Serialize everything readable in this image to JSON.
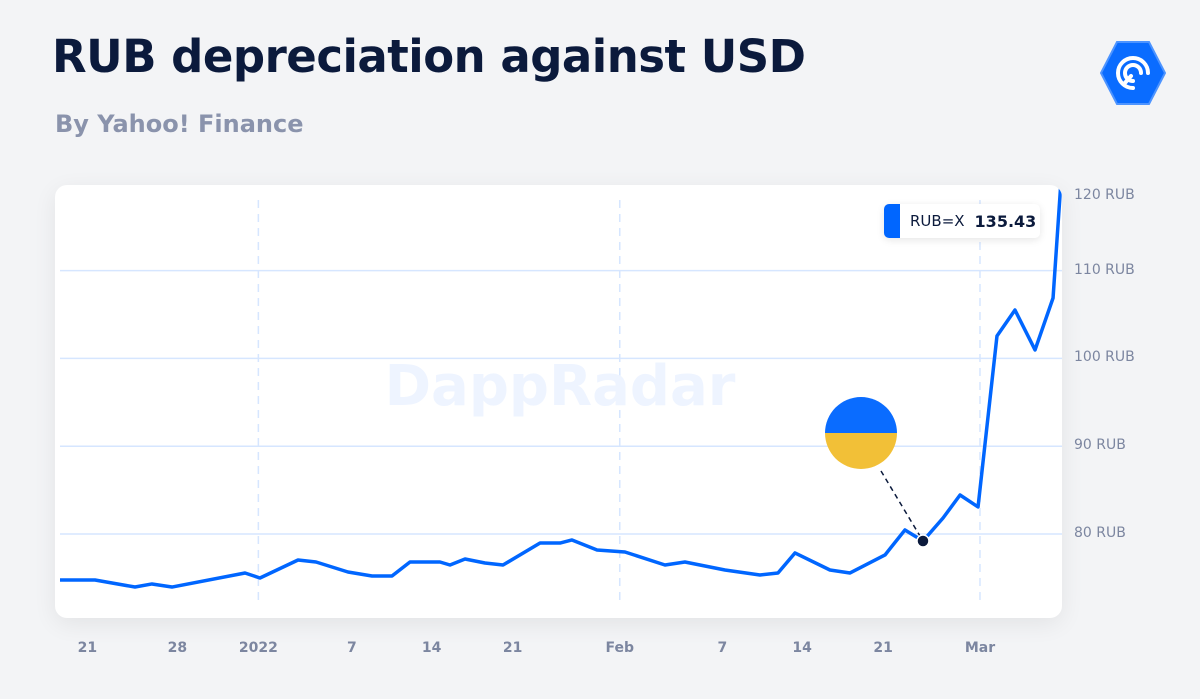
{
  "header": {
    "title": "RUB depreciation against USD",
    "subtitle": "By Yahoo! Finance"
  },
  "watermark": "DappRadar",
  "colors": {
    "line": "#0066ff",
    "grid": "#d6e6ff",
    "flag_blue": "#0a6cff",
    "flag_yellow": "#f2c037"
  },
  "chart_data": {
    "type": "line",
    "title": "RUB depreciation against USD",
    "legend": {
      "series": "RUB=X",
      "value": "135.43",
      "placement": "top-right"
    },
    "ylim": [
      70,
      120
    ],
    "yticks": [
      {
        "value": 80,
        "label": "80 RUB"
      },
      {
        "value": 90,
        "label": "90 RUB"
      },
      {
        "value": 100,
        "label": "100 RUB"
      },
      {
        "value": 110,
        "label": "110 RUB"
      },
      {
        "value": 120,
        "label": "120 RUB"
      }
    ],
    "xticks": [
      {
        "day": 2.4,
        "label": "21",
        "bold_grid": false
      },
      {
        "day": 10.3,
        "label": "28",
        "bold_grid": false
      },
      {
        "day": 17.4,
        "label": "2022",
        "grid": true
      },
      {
        "day": 25.6,
        "label": "7"
      },
      {
        "day": 32.6,
        "label": "14"
      },
      {
        "day": 39.7,
        "label": "21"
      },
      {
        "day": 49.1,
        "label": "Feb",
        "grid": true
      },
      {
        "day": 58.1,
        "label": "7"
      },
      {
        "day": 65.1,
        "label": "14"
      },
      {
        "day": 72.2,
        "label": "21"
      },
      {
        "day": 80.7,
        "label": "Mar",
        "grid": true
      }
    ],
    "series": [
      {
        "name": "RUB=X",
        "x": [
          0,
          3.07,
          6.58,
          8.07,
          9.82,
          16.23,
          17.54,
          20.88,
          22.46,
          25.26,
          27.37,
          29.12,
          30.7,
          33.33,
          34.21,
          35.53,
          37.28,
          38.86,
          42.11,
          43.86,
          44.91,
          47.11,
          49.56,
          53.07,
          54.82,
          58.33,
          61.4,
          62.98,
          64.47,
          67.54,
          69.3,
          72.37,
          74.12,
          75.7,
          77.46,
          78.95,
          80.53,
          82.19,
          83.77,
          85.53,
          87.11,
          88.6
        ],
        "values": [
          74.76,
          74.76,
          73.96,
          74.31,
          73.96,
          75.56,
          74.99,
          77.04,
          76.81,
          75.67,
          75.22,
          75.22,
          76.81,
          76.81,
          76.47,
          77.15,
          76.7,
          76.47,
          78.97,
          78.97,
          79.32,
          78.18,
          77.95,
          76.47,
          76.81,
          75.9,
          75.33,
          75.56,
          77.84,
          75.9,
          75.56,
          77.61,
          80.46,
          79.2,
          81.82,
          84.44,
          83.08,
          102.55,
          105.51,
          100.96,
          106.88,
          135.43
        ]
      }
    ],
    "annotation": {
      "day": 75.7,
      "value": 79.2,
      "marker": "ukraine-flag"
    }
  }
}
